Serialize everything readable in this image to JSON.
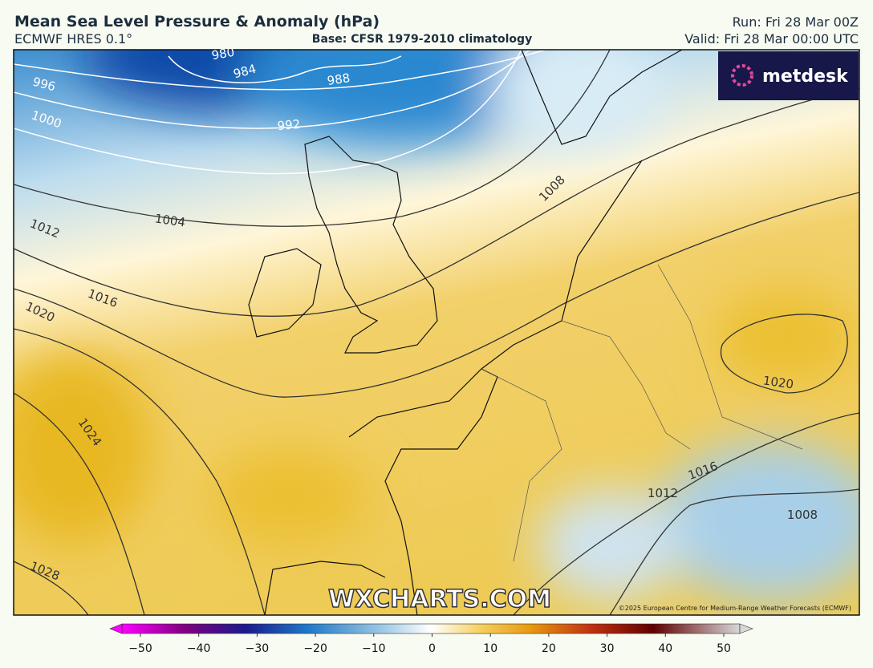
{
  "header": {
    "title": "Mean Sea Level Pressure & Anomaly (hPa)",
    "model": "ECMWF HRES 0.1°",
    "base": "Base: CFSR 1979-2010 climatology",
    "run": "Run: Fri 28 Mar 00Z",
    "valid": "Valid: Fri 28 Mar 00:00 UTC"
  },
  "map": {
    "isobar_labels": [
      980,
      984,
      988,
      992,
      996,
      1000,
      1004,
      1008,
      1012,
      1016,
      1020,
      1024,
      1028,
      1020,
      1016,
      1012,
      1008
    ],
    "logo": "metdesk",
    "watermark": "WXCHARTS.COM",
    "copyright": "©2025 European Centre for Medium-Range Weather Forecasts (ECMWF)"
  },
  "colorbar": {
    "lim": [
      -50,
      50
    ],
    "ticks": [
      {
        "value": -50,
        "label": "−50"
      },
      {
        "value": -40,
        "label": "−40"
      },
      {
        "value": -30,
        "label": "−30"
      },
      {
        "value": -20,
        "label": "−20"
      },
      {
        "value": -10,
        "label": "−10"
      },
      0,
      10,
      20,
      30,
      40,
      50
    ]
  }
}
